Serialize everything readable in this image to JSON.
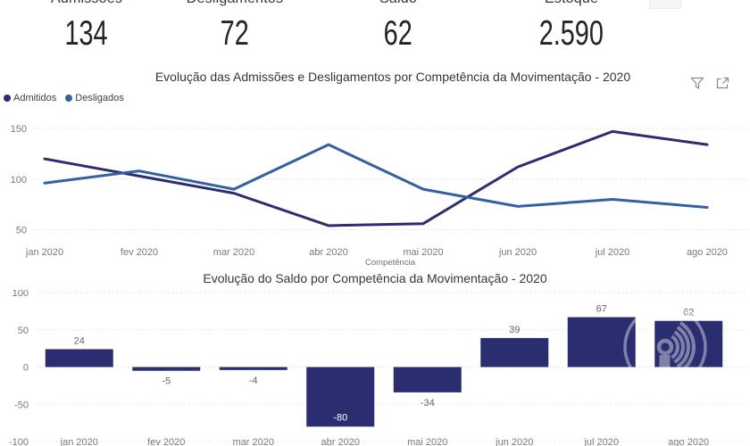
{
  "kpi_row": {
    "cards": [
      {
        "label": "Admissões",
        "value": "134"
      },
      {
        "label": "Desligamentos",
        "value": "72"
      },
      {
        "label": "Saldo",
        "value": "62"
      },
      {
        "label": "Estoque",
        "value": "2.590"
      }
    ]
  },
  "visual_header": {
    "icons": [
      {
        "name": "filter-funnel",
        "glyph": "funnel"
      },
      {
        "name": "focus-mode",
        "glyph": "expand"
      }
    ]
  },
  "colors": {
    "admitidos_navy": "#2A2E71",
    "desligados_blue": "#33619F",
    "axis_text": "#7a7a7a",
    "gridline": "#dcdcdc",
    "bar_label": "#666666"
  },
  "chart_data": [
    {
      "type": "line",
      "title": "Evolução das Admissões e Desligamentos por Competência da Movimentação - 2020",
      "xlabel": "Competência",
      "categories": [
        "jan 2020",
        "fev 2020",
        "mar 2020",
        "abr 2020",
        "mai 2020",
        "jun 2020",
        "jul 2020",
        "ago 2020"
      ],
      "series": [
        {
          "name": "Admitidos",
          "color": "#2A2E71",
          "values": [
            120,
            103,
            86,
            54,
            56,
            112,
            147,
            134
          ]
        },
        {
          "name": "Desligados",
          "color": "#33619F",
          "values": [
            96,
            108,
            90,
            134,
            90,
            73,
            80,
            72
          ]
        }
      ],
      "ylim": [
        50,
        150
      ],
      "yticks": [
        150,
        100,
        50
      ],
      "grid": "dotted-horizontal",
      "legend_position": "top-left"
    },
    {
      "type": "bar",
      "title": "Evolução do Saldo por Competência da Movimentação - 2020",
      "categories": [
        "jan 2020",
        "fev 2020",
        "mar 2020",
        "abr 2020",
        "mai 2020",
        "jun 2020",
        "jul 2020",
        "ago 2020"
      ],
      "values": [
        24,
        -5,
        -4,
        -80,
        -34,
        39,
        67,
        62
      ],
      "bar_color": "#2A2E71",
      "ylim": [
        -100,
        100
      ],
      "yticks": [
        100,
        50,
        0,
        -50,
        -100
      ],
      "grid": "dotted-horizontal",
      "data_labels": true
    }
  ]
}
